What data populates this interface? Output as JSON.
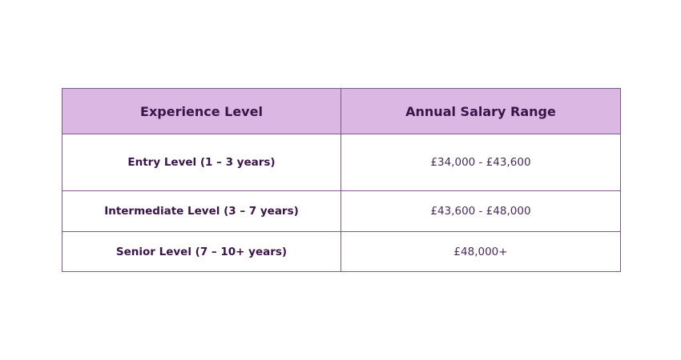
{
  "table": {
    "headers": [
      "Experience Level",
      "Annual Salary Range"
    ],
    "rows": [
      {
        "level": "Entry Level (1 – 3 years)",
        "range": "£34,000 - £43,600"
      },
      {
        "level": "Intermediate Level (3 – 7 years)",
        "range": "£43,600 - £48,000"
      },
      {
        "level": "Senior Level (7 – 10+ years)",
        "range": "£48,000+"
      }
    ]
  },
  "colors": {
    "header_background": "#dbb8e3",
    "border": "#7b5a86",
    "text": "#3a1448"
  }
}
